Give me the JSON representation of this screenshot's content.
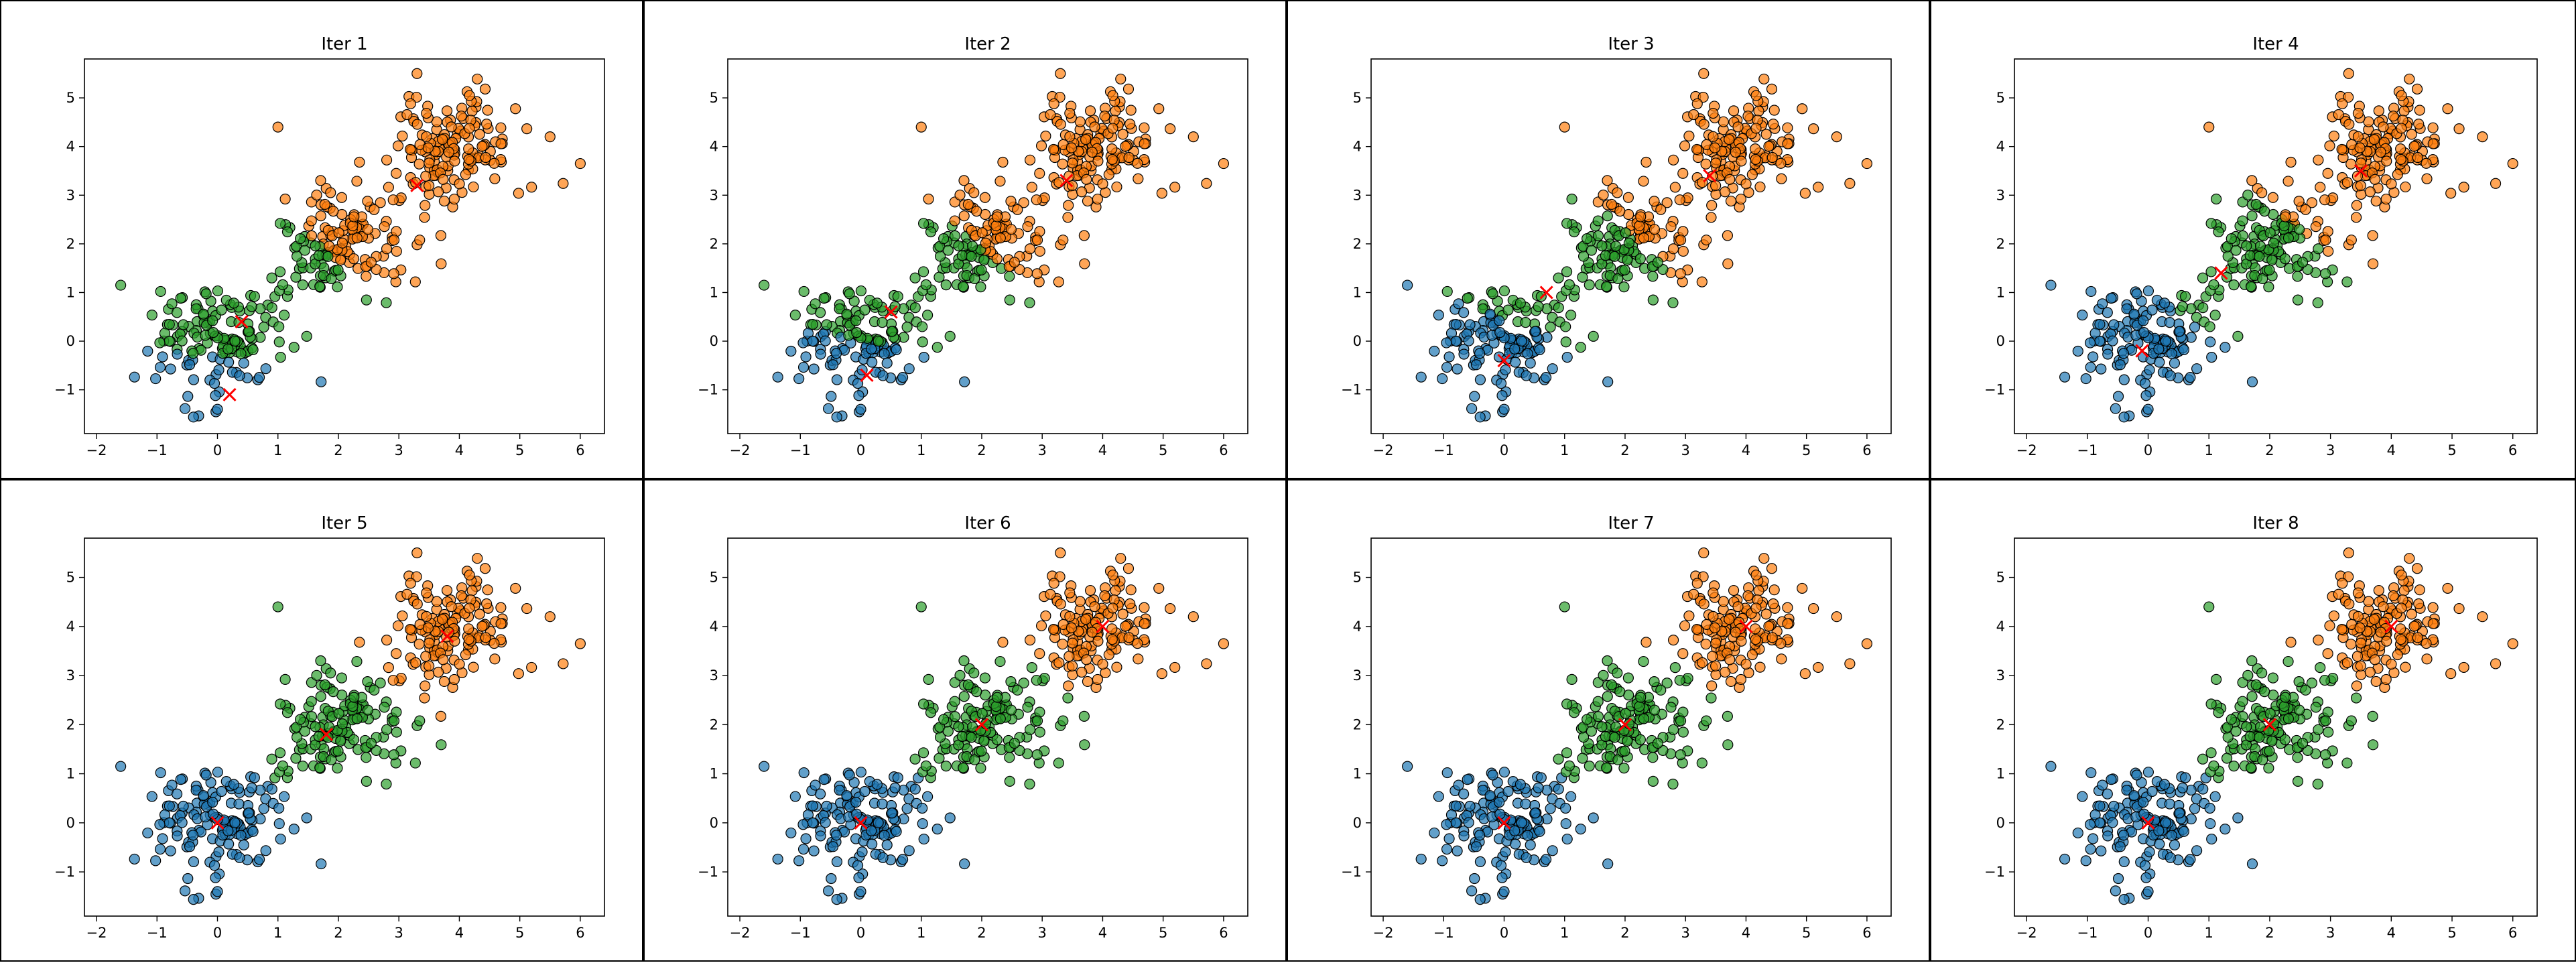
{
  "colors": {
    "blue": "#1f77b4",
    "orange": "#ff7f0e",
    "green": "#2ca02c",
    "centroid": "#ff0000"
  },
  "chart_data": [
    {
      "type": "scatter",
      "title": "Iter 1",
      "xlim": [
        -2.2,
        6.4
      ],
      "ylim": [
        -1.9,
        5.8
      ],
      "xticks": [
        -2,
        -1,
        0,
        1,
        2,
        3,
        4,
        5,
        6
      ],
      "yticks": [
        -1,
        0,
        1,
        2,
        3,
        4,
        5
      ],
      "centroids": [
        {
          "x": 0.2,
          "y": -1.1
        },
        {
          "x": 0.4,
          "y": 0.4
        },
        {
          "x": 3.3,
          "y": 3.2
        }
      ],
      "assignment": {
        "c0": "blue",
        "c1": "green",
        "c2": "orange",
        "rule": "nearest_centroid"
      }
    },
    {
      "type": "scatter",
      "title": "Iter 2",
      "xlim": [
        -2.2,
        6.4
      ],
      "ylim": [
        -1.9,
        5.8
      ],
      "xticks": [
        -2,
        -1,
        0,
        1,
        2,
        3,
        4,
        5,
        6
      ],
      "yticks": [
        -1,
        0,
        1,
        2,
        3,
        4,
        5
      ],
      "centroids": [
        {
          "x": 0.1,
          "y": -0.7
        },
        {
          "x": 0.5,
          "y": 0.6
        },
        {
          "x": 3.4,
          "y": 3.3
        }
      ],
      "assignment": {
        "c0": "blue",
        "c1": "green",
        "c2": "orange",
        "rule": "nearest_centroid"
      }
    },
    {
      "type": "scatter",
      "title": "Iter 3",
      "xlim": [
        -2.2,
        6.4
      ],
      "ylim": [
        -1.9,
        5.8
      ],
      "xticks": [
        -2,
        -1,
        0,
        1,
        2,
        3,
        4,
        5,
        6
      ],
      "yticks": [
        -1,
        0,
        1,
        2,
        3,
        4,
        5
      ],
      "centroids": [
        {
          "x": 0.0,
          "y": -0.4
        },
        {
          "x": 0.7,
          "y": 1.0
        },
        {
          "x": 3.4,
          "y": 3.4
        }
      ],
      "assignment": {
        "c0": "blue",
        "c1": "green",
        "c2": "orange",
        "rule": "nearest_centroid"
      }
    },
    {
      "type": "scatter",
      "title": "Iter 4",
      "xlim": [
        -2.2,
        6.4
      ],
      "ylim": [
        -1.9,
        5.8
      ],
      "xticks": [
        -2,
        -1,
        0,
        1,
        2,
        3,
        4,
        5,
        6
      ],
      "yticks": [
        -1,
        0,
        1,
        2,
        3,
        4,
        5
      ],
      "centroids": [
        {
          "x": -0.1,
          "y": -0.2
        },
        {
          "x": 1.2,
          "y": 1.4
        },
        {
          "x": 3.5,
          "y": 3.5
        }
      ],
      "assignment": {
        "c0": "blue",
        "c1": "green",
        "c2": "orange",
        "rule": "nearest_centroid"
      }
    },
    {
      "type": "scatter",
      "title": "Iter 5",
      "xlim": [
        -2.2,
        6.4
      ],
      "ylim": [
        -1.9,
        5.8
      ],
      "xticks": [
        -2,
        -1,
        0,
        1,
        2,
        3,
        4,
        5,
        6
      ],
      "yticks": [
        -1,
        0,
        1,
        2,
        3,
        4,
        5
      ],
      "centroids": [
        {
          "x": 0.0,
          "y": 0.0
        },
        {
          "x": 1.8,
          "y": 1.8
        },
        {
          "x": 3.8,
          "y": 3.8
        }
      ],
      "assignment": {
        "c0": "blue",
        "c1": "green",
        "c2": "orange",
        "rule": "nearest_centroid"
      }
    },
    {
      "type": "scatter",
      "title": "Iter 6",
      "xlim": [
        -2.2,
        6.4
      ],
      "ylim": [
        -1.9,
        5.8
      ],
      "xticks": [
        -2,
        -1,
        0,
        1,
        2,
        3,
        4,
        5,
        6
      ],
      "yticks": [
        -1,
        0,
        1,
        2,
        3,
        4,
        5
      ],
      "centroids": [
        {
          "x": 0.0,
          "y": 0.0
        },
        {
          "x": 2.0,
          "y": 2.0
        },
        {
          "x": 4.0,
          "y": 4.0
        }
      ],
      "assignment": {
        "c0": "blue",
        "c1": "green",
        "c2": "orange",
        "rule": "nearest_centroid"
      }
    },
    {
      "type": "scatter",
      "title": "Iter 7",
      "xlim": [
        -2.2,
        6.4
      ],
      "ylim": [
        -1.9,
        5.8
      ],
      "xticks": [
        -2,
        -1,
        0,
        1,
        2,
        3,
        4,
        5,
        6
      ],
      "yticks": [
        -1,
        0,
        1,
        2,
        3,
        4,
        5
      ],
      "centroids": [
        {
          "x": 0.0,
          "y": 0.0
        },
        {
          "x": 2.0,
          "y": 2.0
        },
        {
          "x": 4.0,
          "y": 4.0
        }
      ],
      "assignment": {
        "c0": "blue",
        "c1": "green",
        "c2": "orange",
        "rule": "nearest_centroid"
      }
    },
    {
      "type": "scatter",
      "title": "Iter 8",
      "xlim": [
        -2.2,
        6.4
      ],
      "ylim": [
        -1.9,
        5.8
      ],
      "xticks": [
        -2,
        -1,
        0,
        1,
        2,
        3,
        4,
        5,
        6
      ],
      "yticks": [
        -1,
        0,
        1,
        2,
        3,
        4,
        5
      ],
      "centroids": [
        {
          "x": 0.0,
          "y": 0.0
        },
        {
          "x": 2.0,
          "y": 2.0
        },
        {
          "x": 4.0,
          "y": 4.0
        }
      ],
      "assignment": {
        "c0": "blue",
        "c1": "green",
        "c2": "orange",
        "rule": "nearest_centroid"
      }
    }
  ],
  "points": {
    "generator": "three gaussian blobs",
    "blobs": [
      {
        "cx": 0.0,
        "cy": 0.0,
        "sd": 0.55,
        "n": 150
      },
      {
        "cx": 2.0,
        "cy": 2.0,
        "sd": 0.55,
        "n": 150
      },
      {
        "cx": 4.0,
        "cy": 4.0,
        "sd": 0.55,
        "n": 150
      }
    ],
    "extra": [
      {
        "x": -1.6,
        "y": 1.15
      },
      {
        "x": 1.0,
        "y": 4.4
      },
      {
        "x": 3.3,
        "y": 5.5
      },
      {
        "x": 6.0,
        "y": 3.65
      },
      {
        "x": 0.0,
        "y": -1.4
      },
      {
        "x": 5.5,
        "y": 4.2
      }
    ],
    "seed": 7
  }
}
